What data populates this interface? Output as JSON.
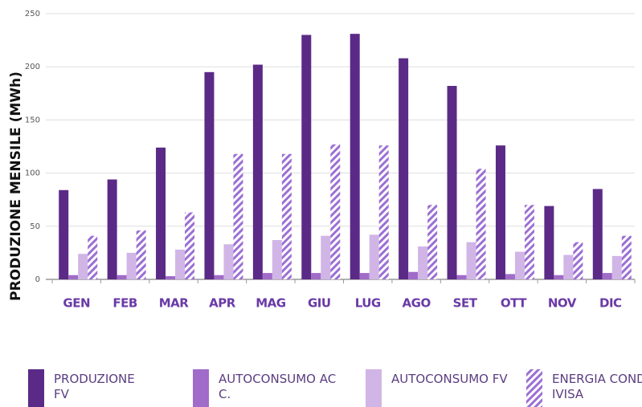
{
  "chart_data": {
    "type": "bar",
    "ylabel": "PRODUZIONE MENSILE (MWh)",
    "categories": [
      "GEN",
      "FEB",
      "MAR",
      "APR",
      "MAG",
      "GIU",
      "LUG",
      "AGO",
      "SET",
      "OTT",
      "NOV",
      "DIC"
    ],
    "series": [
      {
        "name": "PRODUZIONE FV",
        "color": "#5b2a86",
        "values": [
          84,
          94,
          124,
          195,
          202,
          230,
          231,
          208,
          182,
          126,
          69,
          85
        ]
      },
      {
        "name": "AUTOCONSUMO ACC.",
        "color": "#a06bc9",
        "values": [
          4,
          4,
          3,
          4,
          6,
          6,
          6,
          7,
          4,
          5,
          4,
          6
        ]
      },
      {
        "name": "AUTOCONSUMO FV",
        "color": "#d0b5e6",
        "values": [
          24,
          25,
          28,
          33,
          37,
          41,
          42,
          31,
          35,
          26,
          23,
          22
        ]
      },
      {
        "name": "ENERGIA CONDIVISA",
        "color": "#9c6fd3",
        "hatch": true,
        "values": [
          41,
          46,
          63,
          118,
          118,
          127,
          126,
          70,
          104,
          70,
          35,
          41
        ]
      }
    ],
    "ylim": [
      0,
      250
    ],
    "yticks": [
      0,
      50,
      100,
      150,
      200,
      250
    ],
    "grid": true
  }
}
